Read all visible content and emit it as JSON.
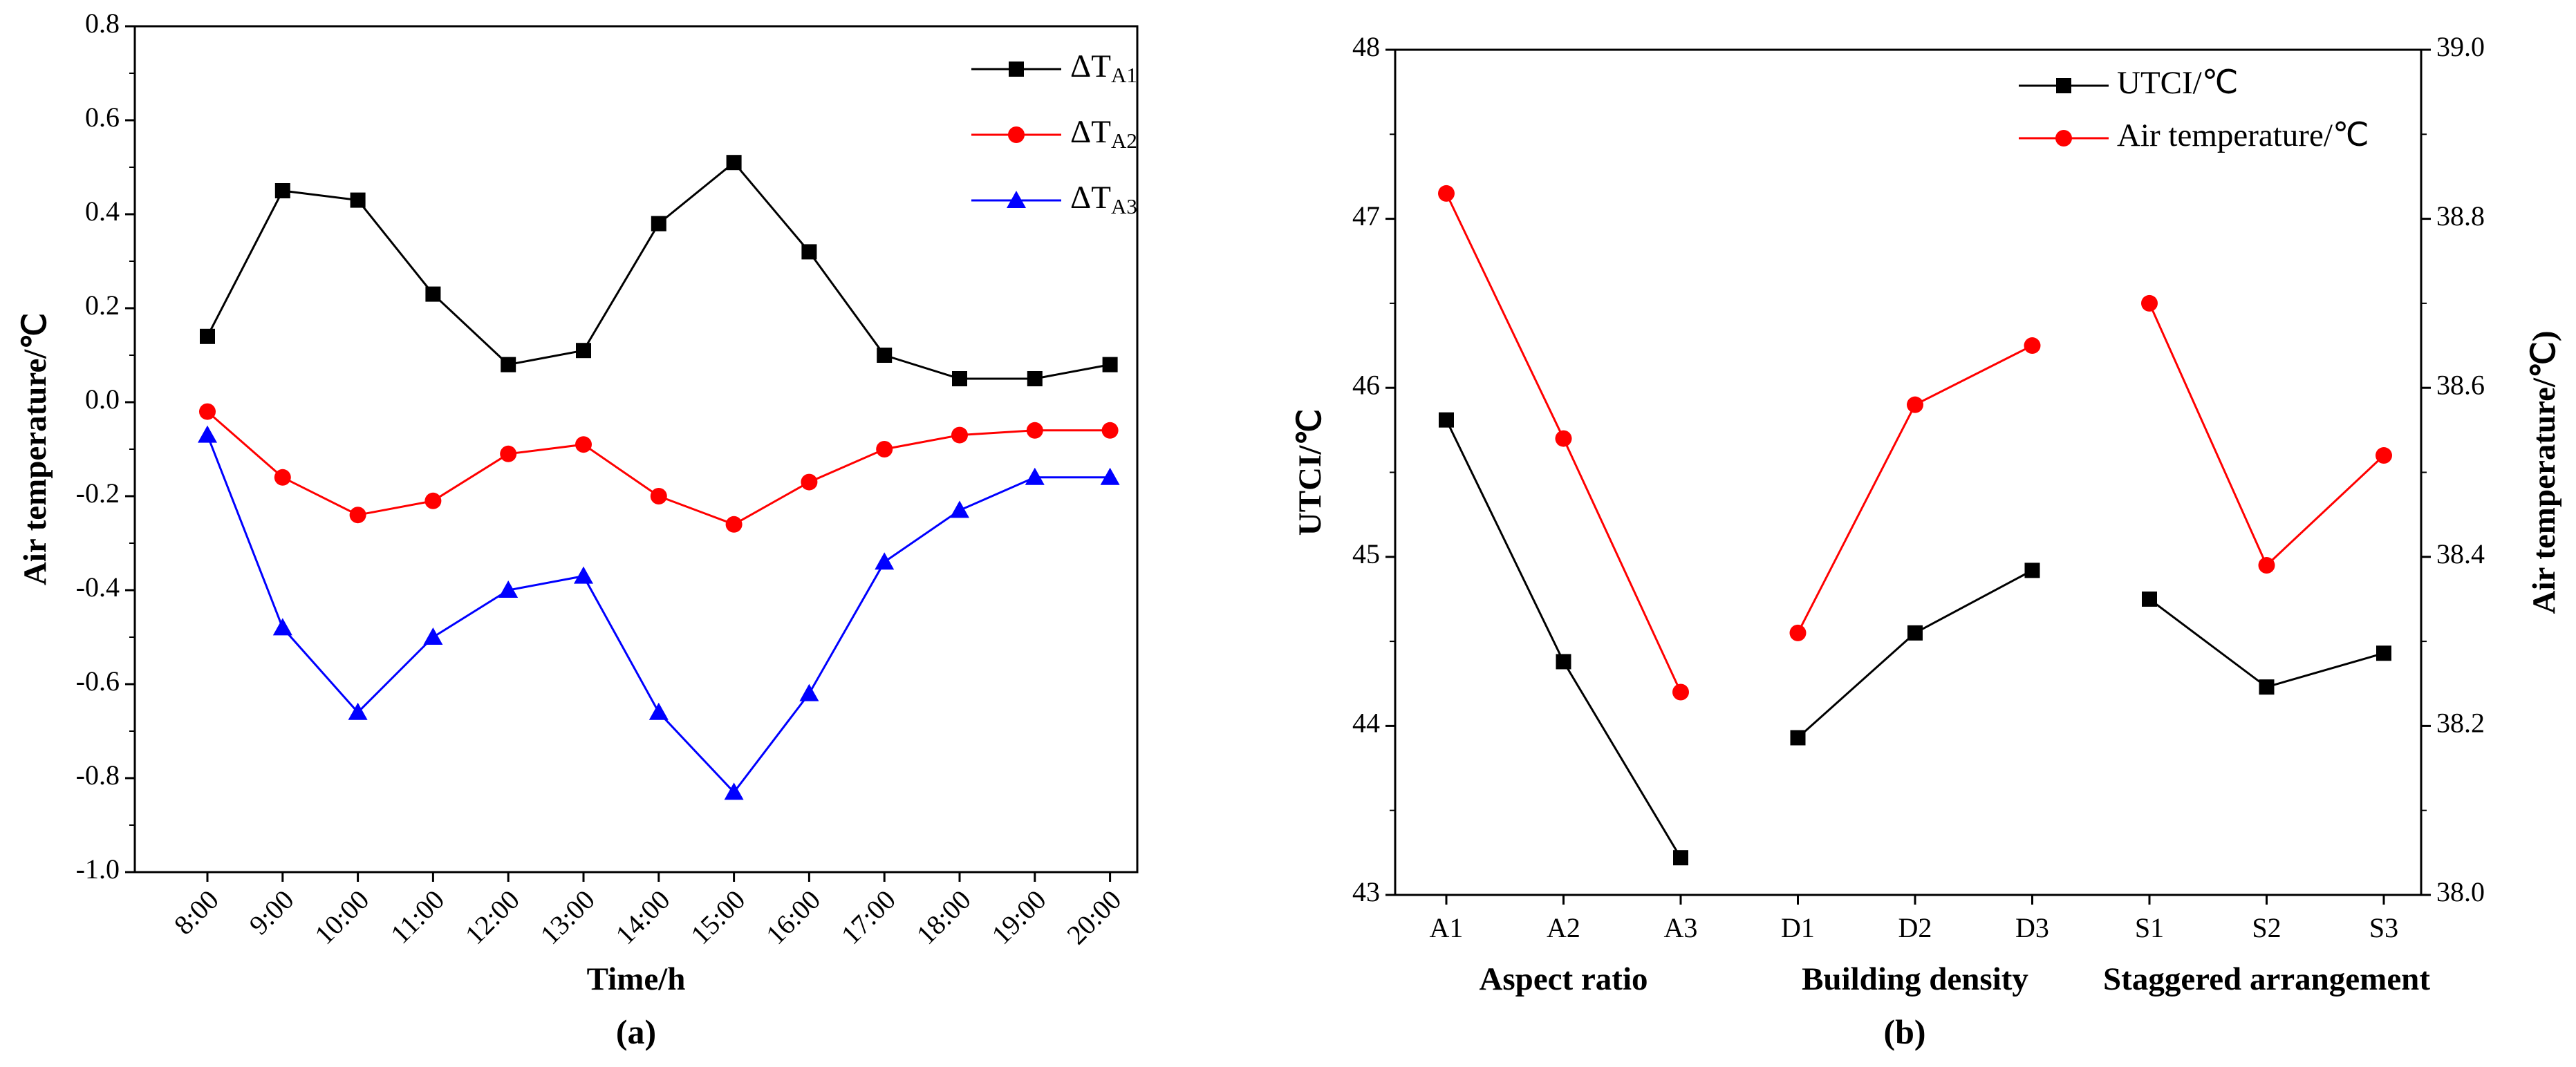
{
  "chart_data": [
    {
      "type": "line",
      "panel_label": "(a)",
      "xlabel": "Time/h",
      "ylabel": "Air temperature/℃",
      "ylim": [
        -1.0,
        0.8
      ],
      "yticks": [
        "-1.0",
        "-0.8",
        "-0.6",
        "-0.4",
        "-0.2",
        "0.0",
        "0.2",
        "0.4",
        "0.6",
        "0.8"
      ],
      "categories": [
        "8:00",
        "9:00",
        "10:00",
        "11:00",
        "12:00",
        "13:00",
        "14:00",
        "15:00",
        "16:00",
        "17:00",
        "18:00",
        "19:00",
        "20:00"
      ],
      "legend_position": "top-right",
      "series": [
        {
          "name": "ΔT",
          "subscript": "A1",
          "marker": "square",
          "color": "#000000",
          "values": [
            0.14,
            0.45,
            0.43,
            0.23,
            0.08,
            0.11,
            0.38,
            0.51,
            0.32,
            0.1,
            0.05,
            0.05,
            0.08
          ]
        },
        {
          "name": "ΔT",
          "subscript": "A2",
          "marker": "circle",
          "color": "#ff0000",
          "values": [
            -0.02,
            -0.16,
            -0.24,
            -0.21,
            -0.11,
            -0.09,
            -0.2,
            -0.26,
            -0.17,
            -0.1,
            -0.07,
            -0.06,
            -0.06
          ]
        },
        {
          "name": "ΔT",
          "subscript": "A3",
          "marker": "triangle",
          "color": "#0000ff",
          "values": [
            -0.07,
            -0.48,
            -0.66,
            -0.5,
            -0.4,
            -0.37,
            -0.66,
            -0.83,
            -0.62,
            -0.34,
            -0.23,
            -0.16,
            -0.16
          ]
        }
      ]
    },
    {
      "type": "line",
      "panel_label": "(b)",
      "ylabel": "UTCI/℃",
      "ylabel_right": "Air temperature/℃)",
      "ylim": [
        43,
        48
      ],
      "ylim_right": [
        38.0,
        39.0
      ],
      "yticks": [
        "43",
        "44",
        "45",
        "46",
        "47",
        "48"
      ],
      "yticks_right": [
        "38.0",
        "38.2",
        "38.4",
        "38.6",
        "38.8",
        "39.0"
      ],
      "categories": [
        "A1",
        "A2",
        "A3",
        "D1",
        "D2",
        "D3",
        "S1",
        "S2",
        "S3"
      ],
      "group_labels": [
        "Aspect ratio",
        "Building density",
        "Staggered arrangement"
      ],
      "legend_position": "top-right",
      "series": [
        {
          "name": "UTCI/℃",
          "axis": "left",
          "marker": "square",
          "color": "#000000",
          "groups": [
            [
              45.81,
              44.38,
              43.22
            ],
            [
              43.93,
              44.55,
              44.92
            ],
            [
              44.75,
              44.23,
              44.43
            ]
          ]
        },
        {
          "name": "Air temperature/℃",
          "axis": "right",
          "marker": "circle",
          "color": "#ff0000",
          "groups": [
            [
              38.83,
              38.54,
              38.24
            ],
            [
              38.31,
              38.58,
              38.65
            ],
            [
              38.7,
              38.39,
              38.52
            ]
          ]
        }
      ]
    }
  ]
}
